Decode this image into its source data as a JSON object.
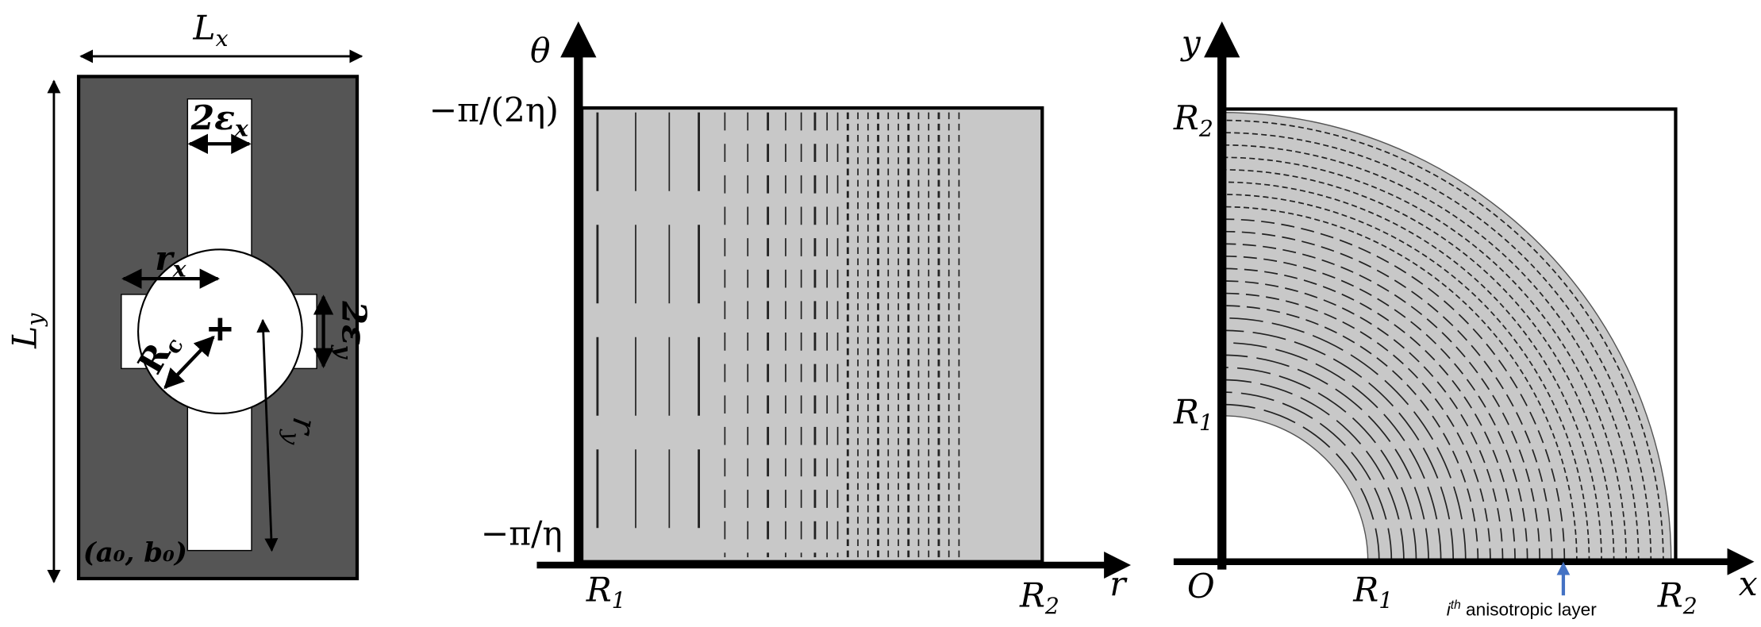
{
  "left_panel": {
    "width_label": {
      "main": "L",
      "sub": "x"
    },
    "height_label": {
      "main": "L",
      "sub": "y"
    },
    "slot_x_label": {
      "main": "2ε",
      "sub": "x"
    },
    "slot_y_label": {
      "main": "2ε",
      "sub": "y"
    },
    "rx_label": {
      "main": "r",
      "sub": "x"
    },
    "ry_label": {
      "main": "r",
      "sub": "y"
    },
    "rc_label": {
      "main": "R",
      "sub": "c"
    },
    "origin_label": "(a₀, b₀)"
  },
  "middle_panel": {
    "theta_label": "θ",
    "top_label": "−π/(2η)",
    "bottom_label": "−π/η",
    "r1_label": {
      "main": "R",
      "sub": "1"
    },
    "r2_label": {
      "main": "R",
      "sub": "2"
    },
    "r_label": "r"
  },
  "right_panel": {
    "y_label": "y",
    "x_label": "x",
    "origin_label": "O",
    "r2_y_label": {
      "main": "R",
      "sub": "2"
    },
    "r1_y_label": {
      "main": "R",
      "sub": "1"
    },
    "r1_x_label": {
      "main": "R",
      "sub": "1"
    },
    "r2_x_label": {
      "main": "R",
      "sub": "2"
    },
    "layer_label": {
      "base": "i",
      "sup": "th",
      "text": " anisotropic layer"
    }
  }
}
